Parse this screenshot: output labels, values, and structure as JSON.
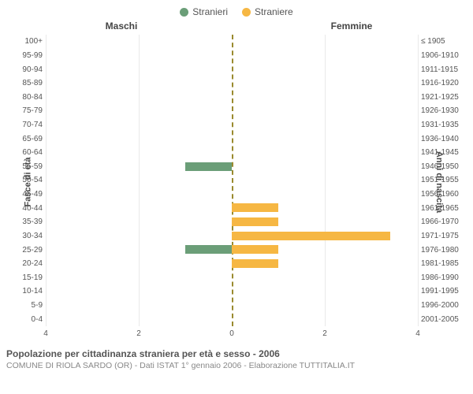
{
  "legend": {
    "male": {
      "label": "Stranieri",
      "color": "#6b9e78"
    },
    "female": {
      "label": "Straniere",
      "color": "#f6b743"
    }
  },
  "panelTitles": {
    "left": "Maschi",
    "right": "Femmine"
  },
  "axisTitles": {
    "left": "Fasce di età",
    "right": "Anni di nascita"
  },
  "xAxis": {
    "min": 0,
    "max": 4,
    "ticks": [
      4,
      2,
      0,
      2,
      4
    ]
  },
  "colors": {
    "background": "#ffffff",
    "grid": "#e9e9e9",
    "centerLine": "#9a8a2e",
    "text": "#555555"
  },
  "rows": [
    {
      "age": "100+",
      "birth": "≤ 1905",
      "m": 0,
      "f": 0
    },
    {
      "age": "95-99",
      "birth": "1906-1910",
      "m": 0,
      "f": 0
    },
    {
      "age": "90-94",
      "birth": "1911-1915",
      "m": 0,
      "f": 0
    },
    {
      "age": "85-89",
      "birth": "1916-1920",
      "m": 0,
      "f": 0
    },
    {
      "age": "80-84",
      "birth": "1921-1925",
      "m": 0,
      "f": 0
    },
    {
      "age": "75-79",
      "birth": "1926-1930",
      "m": 0,
      "f": 0
    },
    {
      "age": "70-74",
      "birth": "1931-1935",
      "m": 0,
      "f": 0
    },
    {
      "age": "65-69",
      "birth": "1936-1940",
      "m": 0,
      "f": 0
    },
    {
      "age": "60-64",
      "birth": "1941-1945",
      "m": 0,
      "f": 0
    },
    {
      "age": "55-59",
      "birth": "1946-1950",
      "m": 1.0,
      "f": 0
    },
    {
      "age": "50-54",
      "birth": "1951-1955",
      "m": 0,
      "f": 0
    },
    {
      "age": "45-49",
      "birth": "1956-1960",
      "m": 0,
      "f": 0
    },
    {
      "age": "40-44",
      "birth": "1961-1965",
      "m": 0,
      "f": 1.0
    },
    {
      "age": "35-39",
      "birth": "1966-1970",
      "m": 0,
      "f": 1.0
    },
    {
      "age": "30-34",
      "birth": "1971-1975",
      "m": 0,
      "f": 3.4
    },
    {
      "age": "25-29",
      "birth": "1976-1980",
      "m": 1.0,
      "f": 1.0
    },
    {
      "age": "20-24",
      "birth": "1981-1985",
      "m": 0,
      "f": 1.0
    },
    {
      "age": "15-19",
      "birth": "1986-1990",
      "m": 0,
      "f": 0
    },
    {
      "age": "10-14",
      "birth": "1991-1995",
      "m": 0,
      "f": 0
    },
    {
      "age": "5-9",
      "birth": "1996-2000",
      "m": 0,
      "f": 0
    },
    {
      "age": "0-4",
      "birth": "2001-2005",
      "m": 0,
      "f": 0
    }
  ],
  "caption": "Popolazione per cittadinanza straniera per età e sesso - 2006",
  "subcaption": "COMUNE DI RIOLA SARDO (OR) - Dati ISTAT 1° gennaio 2006 - Elaborazione TUTTITALIA.IT"
}
